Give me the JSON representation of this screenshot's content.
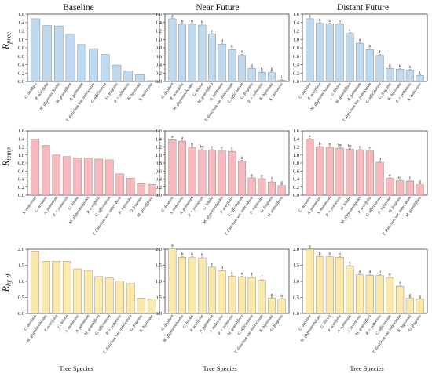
{
  "columns": [
    "Baseline",
    "Near Future",
    "Distant Future"
  ],
  "row_labels": [
    {
      "main": "R",
      "sub": "prec"
    },
    {
      "main": "R",
      "sub": "temp"
    },
    {
      "main": "R",
      "sub": "hy-th"
    }
  ],
  "x_label": "Tree Species",
  "colors": {
    "prec": "#bfd9ee",
    "temp": "#f7b9bd",
    "hyth": "#fbe9ab",
    "edge": "#7a7a7a"
  },
  "chart_data": [
    {
      "type": "bar",
      "row": 0,
      "col": 0,
      "ylim": [
        0,
        1.6
      ],
      "yticks": [
        0,
        0.2,
        0.4,
        0.6,
        0.8,
        1.0,
        1.2,
        1.4,
        1.6
      ],
      "categories": [
        "C. deodara",
        "P. acerifolia",
        "M. glyptostroboides",
        "M. grandiflora",
        "A. palmatum",
        "T. distichum var. imbricatum",
        "C. officinarum",
        "O. fragrans",
        "P. × yedoensis",
        "K. bipinnata",
        "S. mukorossi"
      ],
      "values": [
        1.49,
        1.33,
        1.32,
        1.12,
        0.88,
        0.78,
        0.64,
        0.39,
        0.25,
        0.16,
        0.02
      ],
      "letters": []
    },
    {
      "type": "bar",
      "row": 0,
      "col": 1,
      "ylim": [
        0,
        1.6
      ],
      "yticks": [
        0,
        0.2,
        0.4,
        0.6,
        0.8,
        1.0,
        1.2,
        1.4,
        1.6
      ],
      "categories": [
        "C. deodara",
        "P. acerifolia",
        "M. glyptostroboides",
        "G. biloba",
        "M. grandiflora",
        "A. palmatum",
        "T. distichum var. imbricatum",
        "C. officinarum",
        "O. fragrans",
        "P. × yedoensis",
        "K. bipinnata",
        "S. mukorossi"
      ],
      "values": [
        1.49,
        1.36,
        1.36,
        1.34,
        1.12,
        0.89,
        0.76,
        0.62,
        0.31,
        0.22,
        0.21,
        0.03
      ],
      "letters": [
        "a",
        "b",
        "b",
        "b",
        "c",
        "d",
        "e",
        "f",
        "g",
        "h",
        "h",
        "i"
      ]
    },
    {
      "type": "bar",
      "row": 0,
      "col": 2,
      "ylim": [
        0,
        1.6
      ],
      "yticks": [
        0,
        0.2,
        0.4,
        0.6,
        0.8,
        1.0,
        1.2,
        1.4,
        1.6
      ],
      "categories": [
        "C. deodara",
        "P. acerifolia",
        "M. glyptostroboides",
        "G. biloba",
        "M. grandiflora",
        "A. palmatum",
        "T. distichum var. imbricatum",
        "C. officinarum",
        "O. fragrans",
        "K. bipinnata",
        "P. × yedoensis",
        "S. mukorossi"
      ],
      "values": [
        1.49,
        1.38,
        1.37,
        1.36,
        1.14,
        0.91,
        0.76,
        0.62,
        0.31,
        0.29,
        0.27,
        0.14
      ],
      "letters": [
        "a",
        "b",
        "b",
        "b",
        "c",
        "d",
        "e",
        "f",
        "g",
        "h",
        "h",
        "i"
      ]
    },
    {
      "type": "bar",
      "row": 1,
      "col": 0,
      "ylim": [
        0,
        1.6
      ],
      "yticks": [
        0,
        0.2,
        0.4,
        0.6,
        0.8,
        1.0,
        1.2,
        1.4,
        1.6
      ],
      "categories": [
        "S. mukorossi",
        "C. deodara",
        "A. palmatum",
        "P. × yedoensis",
        "G. biloba",
        "M. glyptostroboides",
        "P. acerifolia",
        "C. officinarum",
        "T. distichum var. imbricatum",
        "K. bipinnata",
        "O. fragrans",
        "M. grandiflora"
      ],
      "values": [
        1.4,
        1.24,
        1.0,
        0.96,
        0.93,
        0.92,
        0.9,
        0.88,
        0.53,
        0.42,
        0.29,
        0.27
      ],
      "letters": []
    },
    {
      "type": "bar",
      "row": 1,
      "col": 1,
      "ylim": [
        0,
        1.6
      ],
      "yticks": [
        0,
        0.2,
        0.4,
        0.6,
        0.8,
        1.0,
        1.2,
        1.4,
        1.6
      ],
      "categories": [
        "C. deodara",
        "S. mukorossi",
        "A. palmatum",
        "P. × yedoensis",
        "G. biloba",
        "M. glyptostroboides",
        "P. acerifolia",
        "C. officinarum",
        "T. distichum var. imbricatum",
        "K. bipinnata",
        "O. fragrans",
        "M. grandiflora"
      ],
      "values": [
        1.38,
        1.34,
        1.19,
        1.13,
        1.12,
        1.1,
        1.09,
        0.85,
        0.43,
        0.41,
        0.33,
        0.24
      ],
      "letters": [
        "a",
        "a",
        "b",
        "bc",
        "c",
        "c",
        "c",
        "d",
        "e",
        "e",
        "f",
        "g"
      ]
    },
    {
      "type": "bar",
      "row": 1,
      "col": 2,
      "ylim": [
        0,
        1.6
      ],
      "yticks": [
        0,
        0.2,
        0.4,
        0.6,
        0.8,
        1.0,
        1.2,
        1.4,
        1.6
      ],
      "categories": [
        "C. deodara",
        "A. palmatum",
        "S. mukorossi",
        "P. × yedoensis",
        "G. biloba",
        "M. glyptostroboides",
        "P. acerifolia",
        "C. officinarum",
        "K. bipinnata",
        "O. fragrans",
        "T. distichum var. imbricatum",
        "M. grandiflora"
      ],
      "values": [
        1.39,
        1.2,
        1.19,
        1.17,
        1.15,
        1.13,
        1.1,
        0.82,
        0.42,
        0.36,
        0.35,
        0.26
      ],
      "letters": [
        "a",
        "b",
        "b",
        "bc",
        "bc",
        "c",
        "c",
        "d",
        "e",
        "ef",
        "f",
        "g"
      ]
    },
    {
      "type": "bar",
      "row": 2,
      "col": 0,
      "ylim": [
        0,
        2.0
      ],
      "yticks": [
        0,
        0.5,
        1.0,
        1.5,
        2.0
      ],
      "categories": [
        "C. deodara",
        "M. glyptostroboides",
        "P. acerifolia",
        "G. biloba",
        "S. mukorossi",
        "A. palmatum",
        "M. grandiflora",
        "C. officinarum",
        "P. × yedoensis",
        "T. distichum var. imbricatum",
        "O. fragrans",
        "K. bipinnata"
      ],
      "values": [
        1.94,
        1.63,
        1.63,
        1.63,
        1.39,
        1.34,
        1.15,
        1.11,
        1.01,
        0.93,
        0.48,
        0.45
      ],
      "letters": []
    },
    {
      "type": "bar",
      "row": 2,
      "col": 1,
      "ylim": [
        0,
        2.0
      ],
      "yticks": [
        0,
        0.5,
        1.0,
        1.5,
        2.0
      ],
      "categories": [
        "C. deodara",
        "M. glyptostroboides",
        "G. biloba",
        "P. acerifolia",
        "A. palmatum",
        "S. mukorossi",
        "P. × yedoensis",
        "M. grandiflora",
        "C. officinarum",
        "T. distichum var. imbricatum",
        "K. bipinnata",
        "O. fragrans"
      ],
      "values": [
        2.02,
        1.75,
        1.74,
        1.73,
        1.44,
        1.33,
        1.16,
        1.14,
        1.12,
        1.04,
        0.48,
        0.45
      ],
      "letters": [
        "a",
        "b",
        "b",
        "b",
        "c",
        "d",
        "e",
        "e",
        "f",
        "f",
        "g",
        "h"
      ]
    },
    {
      "type": "bar",
      "row": 2,
      "col": 2,
      "ylim": [
        0,
        2.0
      ],
      "yticks": [
        0,
        0.5,
        1.0,
        1.5,
        2.0
      ],
      "categories": [
        "C. deodara",
        "M. glyptostroboides",
        "G. biloba",
        "P. acerifolia",
        "A. palmatum",
        "S. mukorossi",
        "M. grandiflora",
        "P. × yedoensis",
        "C. officinarum",
        "T. distichum var. imbricatum",
        "K. bipinnata",
        "O. fragrans"
      ],
      "values": [
        2.0,
        1.76,
        1.76,
        1.75,
        1.48,
        1.2,
        1.19,
        1.18,
        1.12,
        0.85,
        0.47,
        0.45
      ],
      "letters": [
        "a",
        "b",
        "b",
        "b",
        "c",
        "d",
        "d",
        "d",
        "e",
        "f",
        "g",
        "g"
      ]
    }
  ]
}
